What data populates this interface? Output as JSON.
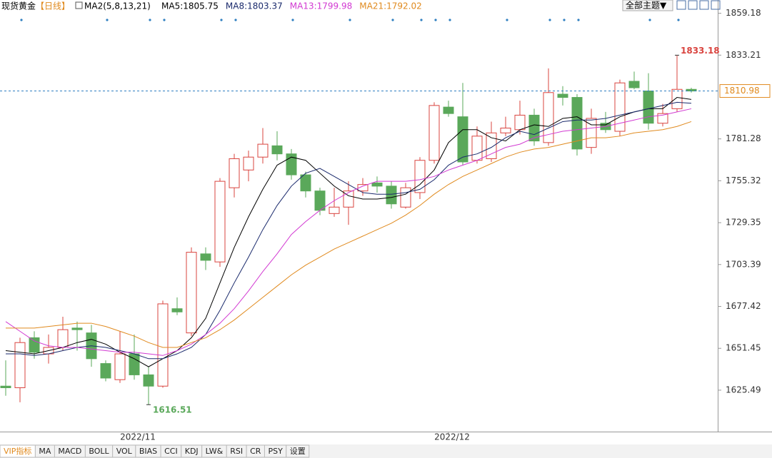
{
  "chart_data": {
    "type": "candlestick",
    "title": "现货黄金",
    "period": "【日线】",
    "indicator": "MA2(5,8,13,21)",
    "categories": [
      null,
      null,
      null,
      null,
      null,
      null,
      null,
      null,
      null,
      "2022/11",
      null,
      null,
      null,
      null,
      null,
      null,
      null,
      null,
      null,
      null,
      null,
      null,
      null,
      null,
      null,
      null,
      null,
      null,
      null,
      null,
      null,
      "2022/12",
      null,
      null,
      null,
      null,
      null,
      null,
      null,
      null,
      null,
      null,
      null,
      null,
      null,
      null,
      null,
      null,
      null
    ],
    "open": [
      1628,
      1627,
      1658,
      1648,
      1652,
      1664,
      1661,
      1642,
      1632,
      1648,
      1635,
      1628,
      1676,
      1661,
      1710,
      1705,
      1751,
      1762,
      1770,
      1777,
      1772,
      1759,
      1749,
      1735,
      1739,
      1749,
      1754,
      1752,
      1739,
      1748,
      1768,
      1801,
      1795,
      1768,
      1769,
      1785,
      1787,
      1796,
      1779,
      1809,
      1807,
      1776,
      1791,
      1786,
      1817,
      1811,
      1791,
      1800,
      1812
    ],
    "high": [
      1644,
      1658,
      1662,
      1660,
      1671,
      1668,
      1666,
      1644,
      1662,
      1660,
      1640,
      1681,
      1683,
      1714,
      1714,
      1757,
      1772,
      1774,
      1788,
      1786,
      1775,
      1761,
      1751,
      1751,
      1755,
      1757,
      1758,
      1755,
      1754,
      1770,
      1804,
      1805,
      1816,
      1789,
      1792,
      1795,
      1805,
      1800,
      1825,
      1814,
      1809,
      1800,
      1798,
      1818,
      1823,
      1822,
      1803,
      1833.18,
      1813
    ],
    "low": [
      1622,
      1618,
      1645,
      1642,
      1650,
      1650,
      1640,
      1631,
      1630,
      1632,
      1616.51,
      1627,
      1672,
      1659,
      1700,
      1702,
      1745,
      1755,
      1766,
      1768,
      1756,
      1745,
      1734,
      1733,
      1728,
      1746,
      1748,
      1738,
      1738,
      1744,
      1766,
      1795,
      1765,
      1766,
      1767,
      1783,
      1784,
      1777,
      1777,
      1802,
      1771,
      1772,
      1785,
      1783,
      1812,
      1787,
      1789,
      1798,
      1810
    ],
    "close": [
      1627,
      1655,
      1649,
      1652,
      1663,
      1663,
      1645,
      1633,
      1648,
      1635,
      1628,
      1679,
      1674,
      1711,
      1706,
      1755,
      1769,
      1770,
      1778,
      1772,
      1759,
      1749,
      1737,
      1739,
      1749,
      1753,
      1752,
      1741,
      1751,
      1768,
      1802,
      1797,
      1767,
      1783,
      1785,
      1788,
      1796,
      1780,
      1810,
      1807,
      1775,
      1794,
      1787,
      1816,
      1813,
      1791,
      1797,
      1812,
      1810.98
    ],
    "up_color": "#d9443f",
    "down_color": "#5aa85a",
    "series": [
      {
        "name": "MA5:",
        "color": "#000000",
        "values": [
          1650,
          1649,
          1648,
          1650,
          1652,
          1655,
          1657,
          1654,
          1649,
          1645,
          1640,
          1645,
          1650,
          1658,
          1670,
          1692,
          1714,
          1733,
          1750,
          1765,
          1770,
          1768,
          1760,
          1752,
          1746,
          1744,
          1744,
          1745,
          1747,
          1753,
          1762,
          1779,
          1787,
          1787,
          1782,
          1780,
          1787,
          1790,
          1789,
          1794,
          1795,
          1790,
          1790,
          1795,
          1798,
          1800,
          1800,
          1807,
          1805.75
        ]
      },
      {
        "name": "MA8:",
        "color": "#1a2a6c",
        "values": [
          1648,
          1648,
          1647,
          1648,
          1650,
          1652,
          1653,
          1652,
          1650,
          1648,
          1645,
          1645,
          1648,
          1652,
          1660,
          1675,
          1692,
          1708,
          1725,
          1740,
          1752,
          1760,
          1763,
          1758,
          1753,
          1748,
          1747,
          1747,
          1748,
          1750,
          1756,
          1765,
          1770,
          1772,
          1776,
          1782,
          1786,
          1784,
          1788,
          1792,
          1793,
          1793,
          1794,
          1796,
          1798,
          1800,
          1802,
          1804,
          1803.37
        ]
      },
      {
        "name": "MA13:",
        "color": "#d23ad2",
        "values": [
          1668,
          1662,
          1656,
          1653,
          1652,
          1652,
          1651,
          1650,
          1649,
          1649,
          1648,
          1647,
          1650,
          1654,
          1660,
          1667,
          1676,
          1687,
          1699,
          1710,
          1722,
          1730,
          1737,
          1743,
          1748,
          1752,
          1755,
          1755,
          1755,
          1756,
          1758,
          1762,
          1765,
          1768,
          1772,
          1776,
          1778,
          1782,
          1784,
          1786,
          1787,
          1788,
          1789,
          1791,
          1793,
          1795,
          1796,
          1798,
          1799.98
        ]
      },
      {
        "name": "MA21:",
        "color": "#e08a1e",
        "values": [
          1664,
          1664,
          1664,
          1665,
          1666,
          1667,
          1667,
          1665,
          1662,
          1659,
          1655,
          1652,
          1652,
          1655,
          1658,
          1663,
          1669,
          1676,
          1683,
          1690,
          1697,
          1703,
          1708,
          1713,
          1717,
          1721,
          1725,
          1729,
          1734,
          1740,
          1747,
          1753,
          1758,
          1762,
          1766,
          1770,
          1773,
          1775,
          1776,
          1778,
          1780,
          1782,
          1782,
          1783,
          1785,
          1786,
          1787,
          1789,
          1792.02
        ]
      }
    ],
    "ylim": [
      1599.8,
      1867.4
    ],
    "yticks": [
      1625.49,
      1651.45,
      1677.42,
      1703.39,
      1729.35,
      1755.32,
      1781.28,
      1833.21,
      1859.18
    ],
    "grid": false
  },
  "toolbar": {
    "theme_button": "全部主题▼"
  },
  "tabs": [
    "VIP指标",
    "MA",
    "MACD",
    "BOLL",
    "VOL",
    "BIAS",
    "CCI",
    "KDJ",
    "LW&",
    "RSI",
    "CR",
    "PSY",
    "设置"
  ]
}
